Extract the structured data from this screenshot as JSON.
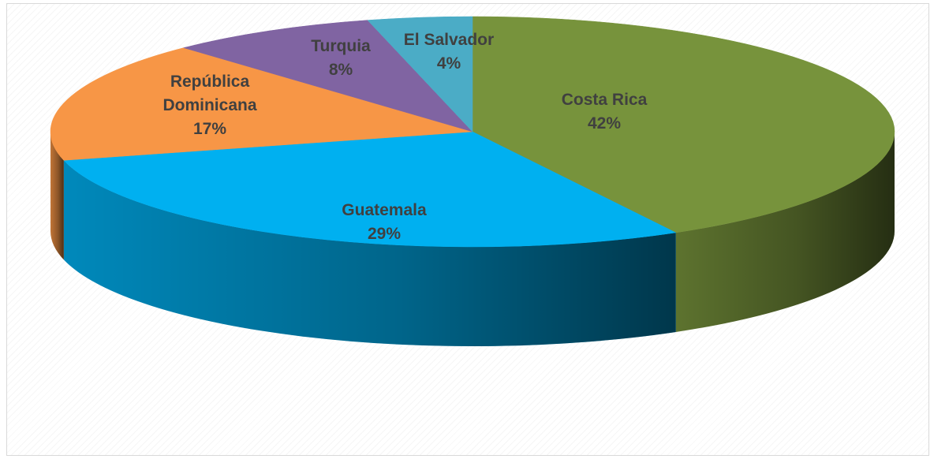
{
  "chart_data": {
    "type": "pie",
    "style": "3d",
    "title": "",
    "series": [
      {
        "values": [
          42,
          29,
          17,
          8,
          4
        ]
      }
    ],
    "categories": [
      "Costa Rica",
      "Guatemala",
      "República Dominicana",
      "Turquia",
      "El Salvador"
    ],
    "values": [
      42,
      29,
      17,
      8,
      4
    ],
    "slices": [
      {
        "label": "Costa Rica",
        "value": 42,
        "percent_label": "42%",
        "color": "#77933C"
      },
      {
        "label": "Guatemala",
        "value": 29,
        "percent_label": "29%",
        "color": "#00B0F0"
      },
      {
        "label": "República Dominicana",
        "value": 17,
        "percent_label": "17%",
        "color": "#F79646"
      },
      {
        "label": "Turquia",
        "value": 8,
        "percent_label": "8%",
        "color": "#8064A2"
      },
      {
        "label": "El Salvador",
        "value": 4,
        "percent_label": "4%",
        "color": "#4BACC6"
      }
    ],
    "legend": "none"
  }
}
